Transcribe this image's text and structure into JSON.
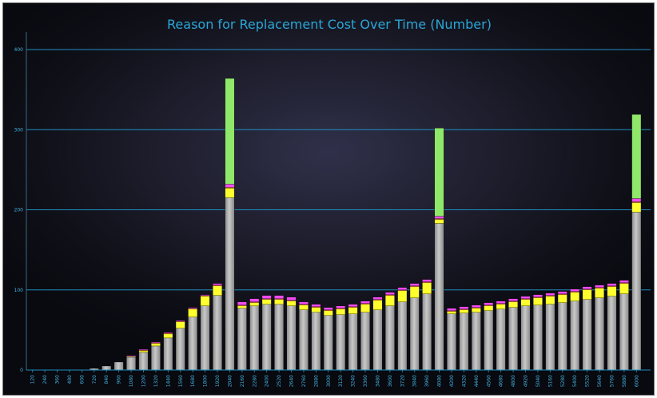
{
  "chart_data": {
    "type": "bar",
    "stacked": true,
    "title": "Reason for Replacement Cost Over Time (Number)",
    "xlabel": "",
    "ylabel": "",
    "ylim": [
      0,
      400
    ],
    "yticks": [
      0,
      100,
      200,
      300,
      400
    ],
    "grid": true,
    "legend": "none",
    "categories": [
      "120",
      "240",
      "360",
      "480",
      "600",
      "720",
      "840",
      "960",
      "1080",
      "1200",
      "1320",
      "1440",
      "1560",
      "1680",
      "1800",
      "1920",
      "2040",
      "2160",
      "2280",
      "2400",
      "2520",
      "2640",
      "2760",
      "2880",
      "3000",
      "3120",
      "3240",
      "3360",
      "3480",
      "3600",
      "3720",
      "3840",
      "3960",
      "4080",
      "4200",
      "4320",
      "4440",
      "4560",
      "4680",
      "4800",
      "4920",
      "5040",
      "5160",
      "5280",
      "5400",
      "5520",
      "5640",
      "5760",
      "5880",
      "6000"
    ],
    "colors": [
      "#a8a8a8",
      "#ffff2e",
      "#ff8a3a",
      "#f14bf1",
      "#8fe86a"
    ],
    "series": [
      {
        "values": [
          0,
          0,
          0,
          0,
          0,
          2,
          5,
          10,
          16,
          22,
          30,
          40,
          52,
          66,
          80,
          93,
          215,
          77,
          80,
          82,
          82,
          80,
          75,
          72,
          68,
          69,
          70,
          72,
          75,
          80,
          85,
          90,
          95,
          183,
          70,
          71,
          72,
          74,
          76,
          78,
          80,
          81,
          82,
          84,
          86,
          88,
          90,
          92,
          95,
          197
        ]
      },
      {
        "values": [
          0,
          0,
          0,
          0,
          0,
          0,
          0,
          0,
          1,
          2,
          3,
          5,
          8,
          10,
          12,
          12,
          12,
          3,
          4,
          6,
          6,
          6,
          6,
          6,
          6,
          7,
          8,
          10,
          12,
          13,
          14,
          14,
          14,
          5,
          3,
          4,
          5,
          6,
          6,
          7,
          8,
          9,
          10,
          10,
          11,
          12,
          12,
          12,
          13,
          12
        ]
      },
      {
        "values": [
          0,
          0,
          0,
          0,
          0,
          0,
          0,
          0,
          0,
          1,
          1,
          1,
          1,
          1,
          1,
          1,
          1,
          1,
          1,
          1,
          1,
          1,
          1,
          1,
          1,
          1,
          1,
          1,
          1,
          1,
          1,
          1,
          1,
          1,
          1,
          1,
          1,
          1,
          1,
          1,
          1,
          1,
          1,
          1,
          1,
          1,
          1,
          1,
          1,
          1
        ]
      },
      {
        "values": [
          0,
          0,
          0,
          0,
          0,
          0,
          0,
          0,
          1,
          1,
          1,
          1,
          1,
          1,
          1,
          2,
          4,
          4,
          4,
          4,
          4,
          4,
          3,
          3,
          3,
          3,
          3,
          3,
          3,
          3,
          3,
          3,
          3,
          3,
          3,
          3,
          3,
          3,
          3,
          3,
          3,
          3,
          3,
          3,
          3,
          3,
          3,
          3,
          3,
          4
        ]
      },
      {
        "values": [
          0,
          0,
          0,
          0,
          0,
          0,
          0,
          0,
          0,
          0,
          0,
          0,
          0,
          0,
          0,
          0,
          132,
          0,
          0,
          0,
          0,
          0,
          0,
          0,
          0,
          0,
          0,
          0,
          0,
          0,
          0,
          0,
          0,
          110,
          0,
          0,
          0,
          0,
          0,
          0,
          0,
          0,
          0,
          0,
          0,
          0,
          0,
          0,
          0,
          105
        ]
      }
    ]
  }
}
